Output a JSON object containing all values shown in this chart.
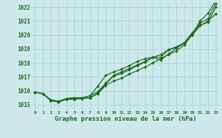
{
  "background_color": "#cce8ea",
  "plot_bg_color": "#cce8ea",
  "grid_color": "#aacfd4",
  "line_color": "#1a6b1a",
  "xlabel": "Graphe pression niveau de la mer (hPa)",
  "xlabel_fontsize": 6.5,
  "ylim": [
    1014.6,
    1022.3
  ],
  "xlim": [
    -0.5,
    23.5
  ],
  "yticks": [
    1015,
    1016,
    1017,
    1018,
    1019,
    1020,
    1021,
    1022
  ],
  "xticks": [
    0,
    1,
    2,
    3,
    4,
    5,
    6,
    7,
    8,
    9,
    10,
    11,
    12,
    13,
    14,
    15,
    16,
    17,
    18,
    19,
    20,
    21,
    22,
    23
  ],
  "series": [
    [
      1015.9,
      1015.8,
      1015.3,
      1015.2,
      1015.4,
      1015.4,
      1015.45,
      1015.5,
      1015.8,
      1016.4,
      1016.7,
      1016.9,
      1017.2,
      1017.45,
      1017.7,
      1018.0,
      1018.3,
      1018.6,
      1018.85,
      1019.3,
      1020.0,
      1020.65,
      1021.0,
      1021.5
    ],
    [
      1015.9,
      1015.8,
      1015.3,
      1015.2,
      1015.4,
      1015.4,
      1015.45,
      1015.5,
      1015.85,
      1016.5,
      1017.05,
      1017.25,
      1017.5,
      1017.8,
      1018.05,
      1018.4,
      1018.6,
      1018.95,
      1019.1,
      1019.4,
      1020.1,
      1020.7,
      1020.9,
      1022.0
    ],
    [
      1015.9,
      1015.8,
      1015.35,
      1015.25,
      1015.45,
      1015.5,
      1015.5,
      1015.65,
      1015.95,
      1016.55,
      1017.1,
      1017.35,
      1017.6,
      1017.85,
      1018.1,
      1018.4,
      1018.4,
      1018.95,
      1019.15,
      1019.45,
      1020.15,
      1020.85,
      1021.15,
      1022.25
    ],
    [
      1015.9,
      1015.8,
      1015.35,
      1015.25,
      1015.45,
      1015.5,
      1015.5,
      1015.65,
      1016.35,
      1017.1,
      1017.35,
      1017.55,
      1017.8,
      1018.1,
      1018.3,
      1018.4,
      1018.2,
      1018.65,
      1019.05,
      1019.45,
      1020.05,
      1021.0,
      1021.55,
      1022.45
    ]
  ]
}
